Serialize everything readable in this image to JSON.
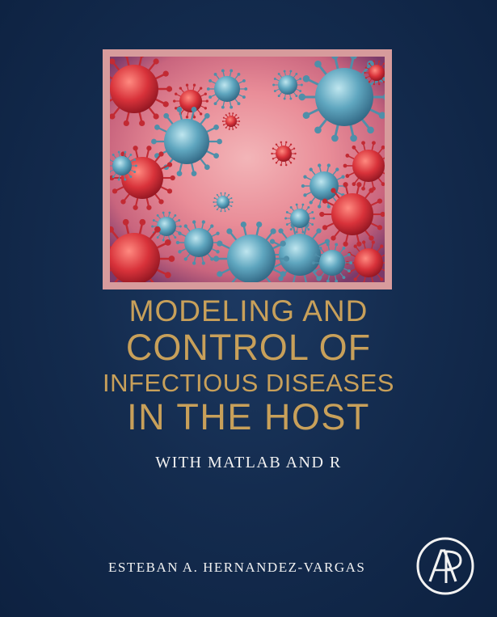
{
  "title": {
    "line1": "MODELING AND",
    "line2": "CONTROL OF",
    "line3": "INFECTIOUS DISEASES",
    "line4": "IN THE HOST"
  },
  "subtitle": "WITH MATLAB AND R",
  "author": "ESTEBAN A. HERNANDEZ-VARGAS",
  "publisher_logo": {
    "icon": "publisher-ap-logo-icon",
    "text": "AP"
  },
  "colors": {
    "background": "#142c4f",
    "title": "#c8a05a",
    "frame": "#d79b9c",
    "text": "#f2f2f2"
  }
}
